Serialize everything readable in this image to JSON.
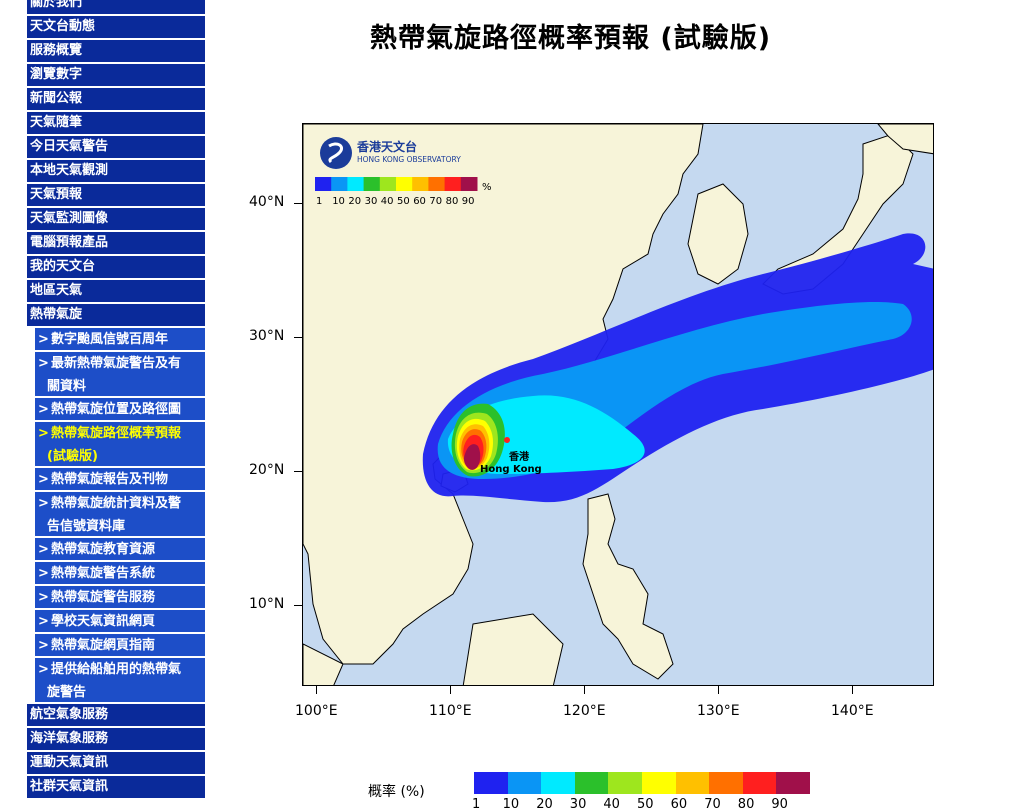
{
  "sidebar": {
    "items": [
      {
        "label": "關於我們"
      },
      {
        "label": "天文台動態"
      },
      {
        "label": "服務概覽"
      },
      {
        "label": "瀏覽數字"
      },
      {
        "label": "新聞公報"
      },
      {
        "label": "天氣隨筆"
      },
      {
        "label": "今日天氣警告"
      },
      {
        "label": "本地天氣觀測"
      },
      {
        "label": "天氣預報"
      },
      {
        "label": "天氣監測圖像"
      },
      {
        "label": "電腦預報產品"
      },
      {
        "label": "我的天文台"
      },
      {
        "label": "地區天氣"
      },
      {
        "label": "熱帶氣旋"
      }
    ],
    "sub_items": [
      {
        "label": "數字颱風信號百周年"
      },
      {
        "label": "最新熱帶氣旋警告及有",
        "label2": "關資料"
      },
      {
        "label": "熱帶氣旋位置及路徑圖"
      },
      {
        "label": "熱帶氣旋路徑概率預報",
        "label2": "(試驗版)"
      },
      {
        "label": "熱帶氣旋報告及刊物"
      },
      {
        "label": "熱帶氣旋統計資料及警",
        "label2": "告信號資料庫"
      },
      {
        "label": "熱帶氣旋教育資源"
      },
      {
        "label": "熱帶氣旋警告系統"
      },
      {
        "label": "熱帶氣旋警告服務"
      },
      {
        "label": "學校天氣資訊網頁"
      },
      {
        "label": "熱帶氣旋網頁指南"
      },
      {
        "label": "提供給船舶用的熱帶氣",
        "label2": "旋警告"
      }
    ],
    "bottom_items": [
      {
        "label": "航空氣象服務"
      },
      {
        "label": "海洋氣象服務"
      },
      {
        "label": "運動天氣資訊"
      },
      {
        "label": "社群天氣資訊"
      }
    ],
    "arrow": ">"
  },
  "page": {
    "title": "熱帶氣旋路徑概率預報 (試驗版)"
  },
  "map": {
    "logo_cn": "香港天文台",
    "logo_en": "HONG KONG OBSERVATORY",
    "hk_label_cn": "香港",
    "hk_label_en": "Hong Kong",
    "lat_labels": [
      "40°N",
      "30°N",
      "20°N",
      "10°N"
    ],
    "lon_labels": [
      "100°E",
      "110°E",
      "120°E",
      "130°E",
      "140°E"
    ],
    "inset_legend_values": [
      "1",
      "10",
      "20",
      "30",
      "40",
      "50",
      "60",
      "70",
      "80",
      "90"
    ],
    "inset_percent": "%",
    "colors": {
      "ocean": "#c5d9f0",
      "land": "#f7f4d9",
      "p1": "#1f22f0",
      "p10": "#0a95f5",
      "p20": "#00eaff",
      "p30": "#2bc02b",
      "p40": "#9ee61e",
      "p50": "#ffff00",
      "p60": "#ffc000",
      "p70": "#ff7000",
      "p80": "#ff1f1f",
      "p90": "#a0104a"
    }
  },
  "legend": {
    "title": "概率 (%)",
    "values": [
      "1",
      "10",
      "20",
      "30",
      "40",
      "50",
      "60",
      "70",
      "80",
      "90"
    ]
  }
}
